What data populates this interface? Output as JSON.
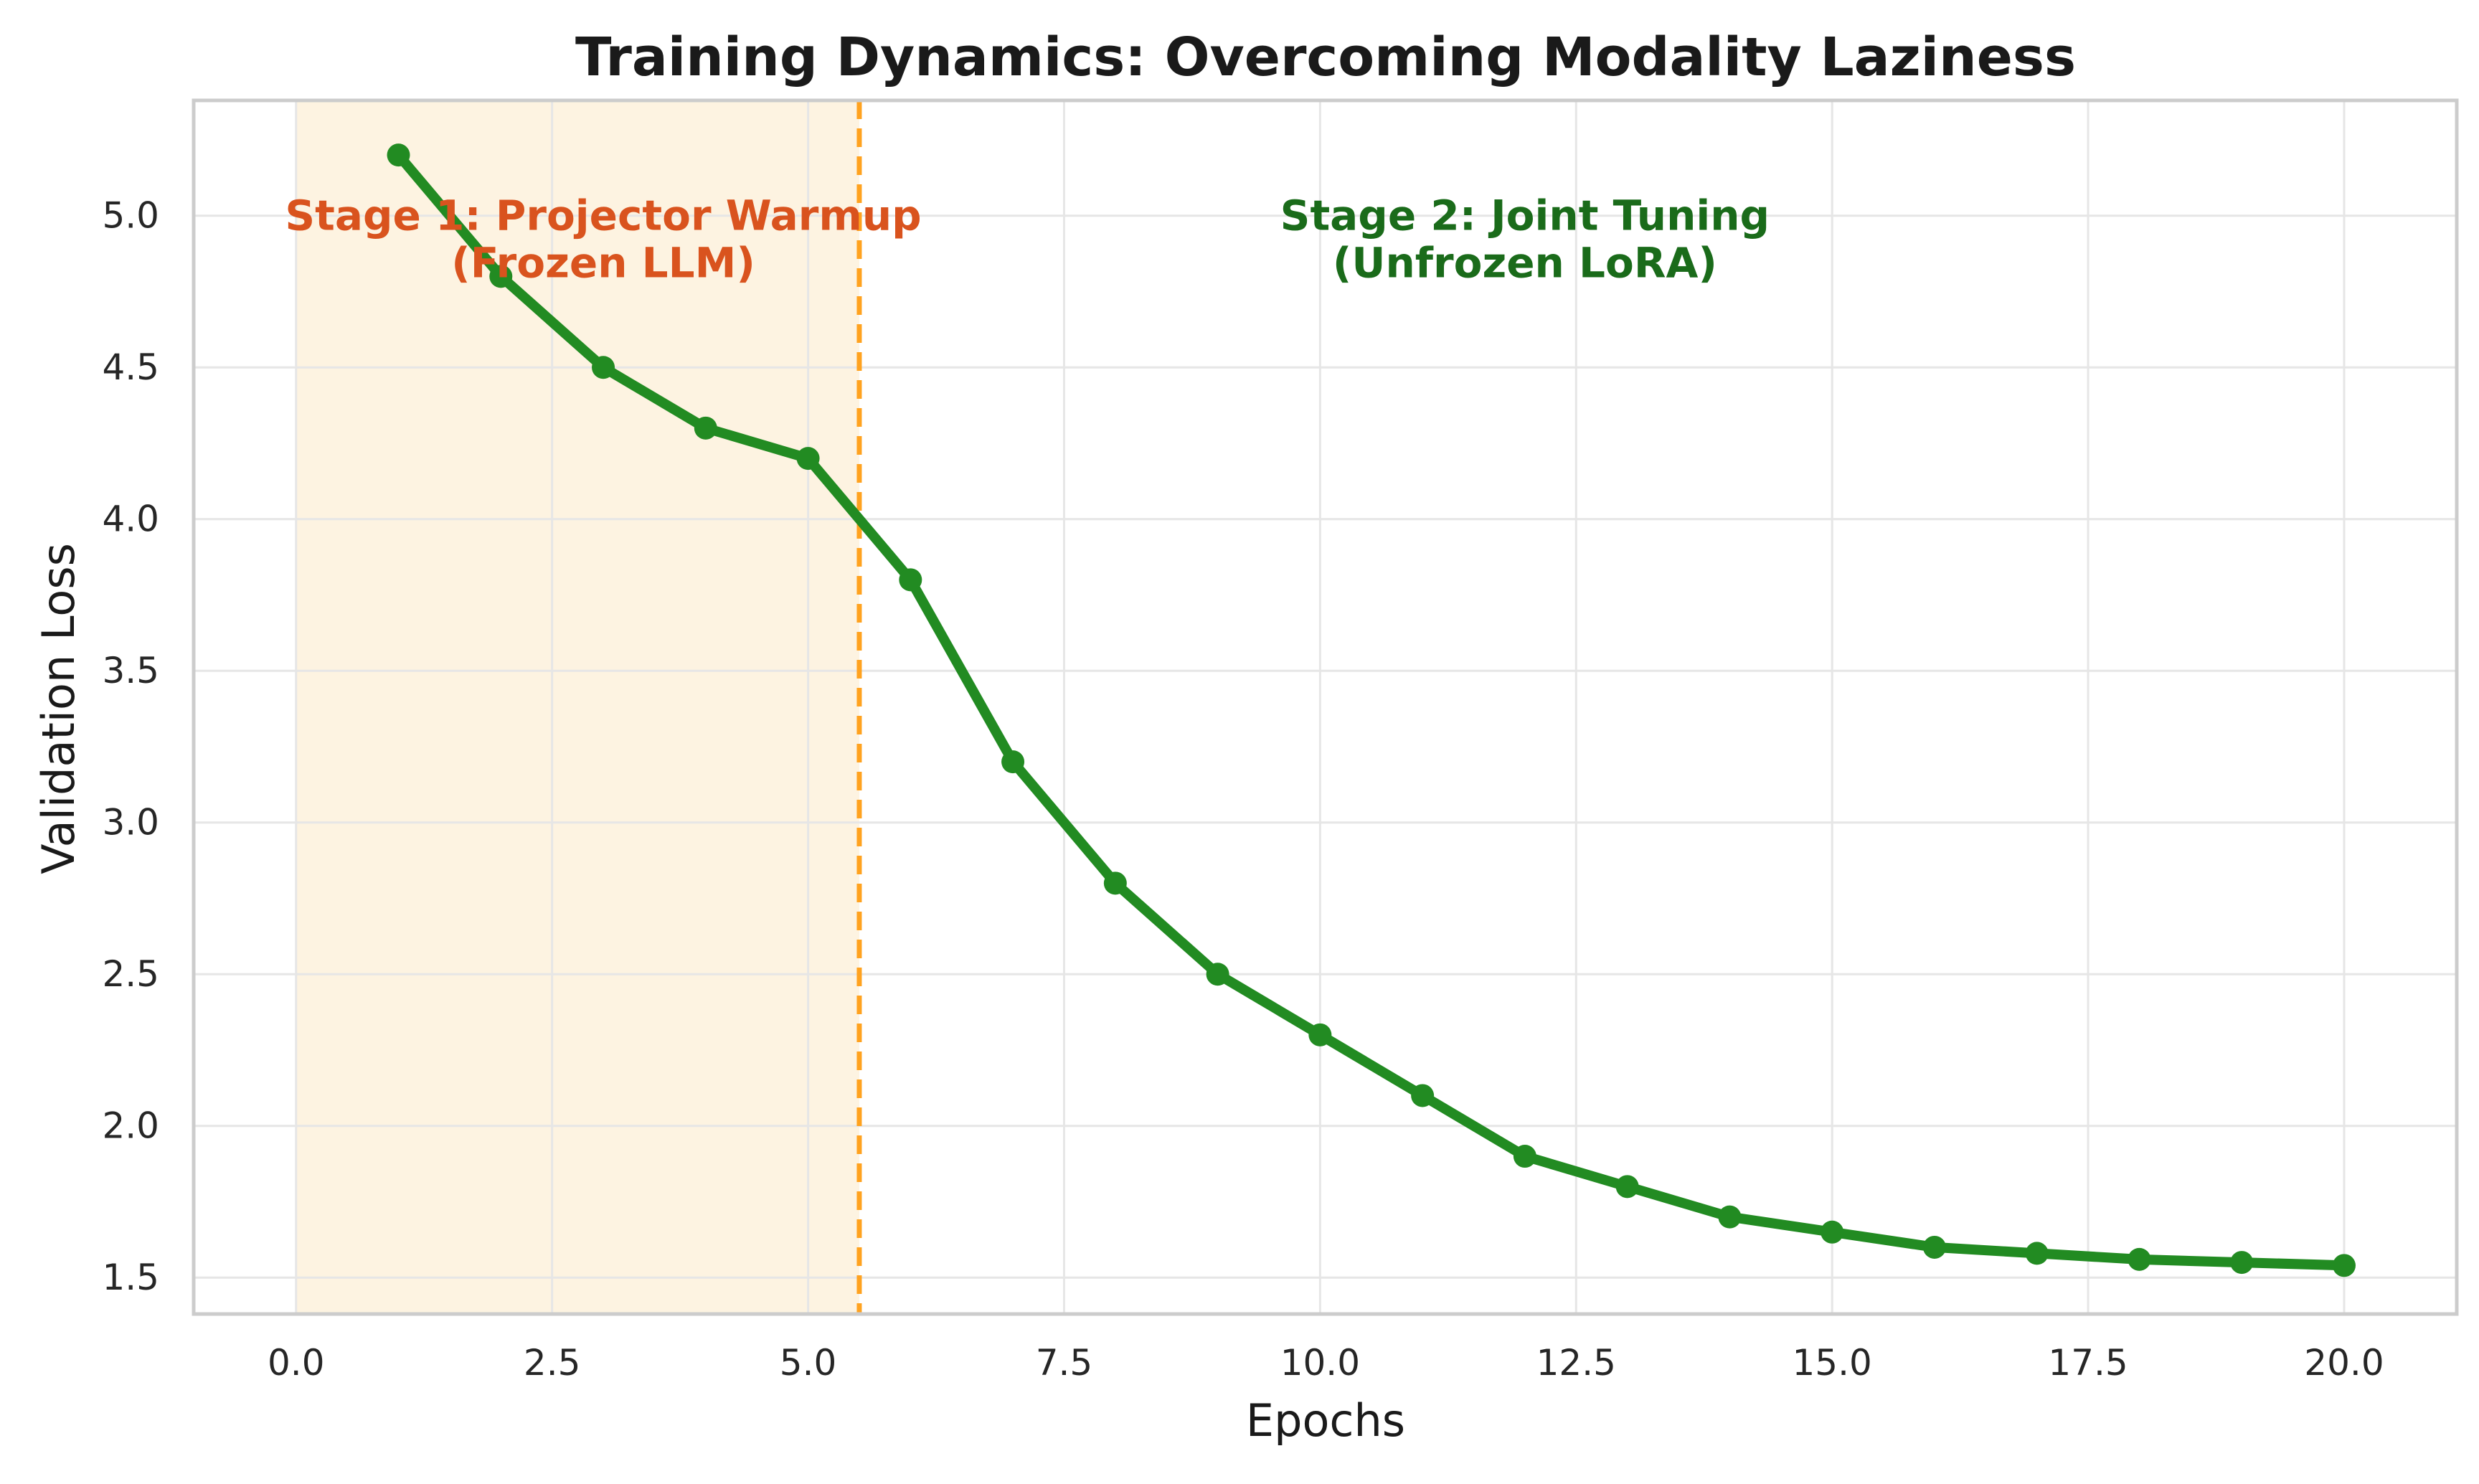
{
  "chart_data": {
    "type": "line",
    "title": "Training Dynamics: Overcoming Modality Laziness",
    "xlabel": "Epochs",
    "ylabel": "Validation Loss",
    "xlim": [
      -1,
      21.1
    ],
    "ylim": [
      1.38,
      5.38
    ],
    "x_ticks": [
      0.0,
      2.5,
      5.0,
      7.5,
      10.0,
      12.5,
      15.0,
      17.5,
      20.0
    ],
    "x_tick_labels": [
      "0.0",
      "2.5",
      "5.0",
      "7.5",
      "10.0",
      "12.5",
      "15.0",
      "17.5",
      "20.0"
    ],
    "y_ticks": [
      1.5,
      2.0,
      2.5,
      3.0,
      3.5,
      4.0,
      4.5,
      5.0
    ],
    "y_tick_labels": [
      "1.5",
      "2.0",
      "2.5",
      "3.0",
      "3.5",
      "4.0",
      "4.5",
      "5.0"
    ],
    "grid": true,
    "series": [
      {
        "name": "Validation Loss",
        "color": "#228B22",
        "x": [
          1,
          2,
          3,
          4,
          5,
          6,
          7,
          8,
          9,
          10,
          11,
          12,
          13,
          14,
          15,
          16,
          17,
          18,
          19,
          20
        ],
        "values": [
          5.2,
          4.8,
          4.5,
          4.3,
          4.2,
          3.8,
          3.2,
          2.8,
          2.5,
          2.3,
          2.1,
          1.9,
          1.8,
          1.7,
          1.65,
          1.6,
          1.58,
          1.56,
          1.55,
          1.54
        ]
      }
    ],
    "shaded_region": {
      "x_start": 0,
      "x_end": 5.5,
      "color": "#FDF3E1"
    },
    "vline": {
      "x": 5.5,
      "color": "#FFA21F",
      "style": "dashed"
    },
    "annotations": [
      {
        "name": "stage1",
        "lines": [
          "Stage 1: Projector Warmup",
          "(Frozen LLM)"
        ],
        "x": 3.0,
        "y": 5.0,
        "color": "#D9531E"
      },
      {
        "name": "stage2",
        "lines": [
          "Stage 2: Joint Tuning",
          "(Unfrozen LoRA)"
        ],
        "x": 12.0,
        "y": 5.0,
        "color": "#1A6B1A"
      }
    ]
  },
  "colors": {
    "grid": "#E6E6E6",
    "frame": "#CCCCCC",
    "text": "#1a1a1a"
  }
}
